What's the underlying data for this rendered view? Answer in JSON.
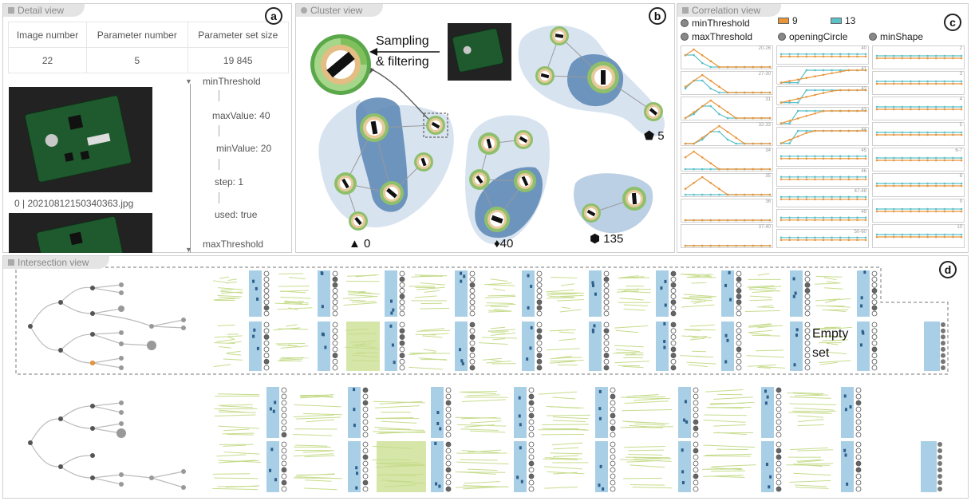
{
  "detail": {
    "title": "Detail view",
    "badge": "a",
    "headers": [
      "Image number",
      "Parameter number",
      "Parameter set size"
    ],
    "values": [
      "22",
      "5",
      "19 845"
    ],
    "image_caption": "0 | 20210812150340363.jpg",
    "tree": {
      "param1": "minThreshold",
      "maxValue": "maxValue: 40",
      "minValue": "minValue: 20",
      "step": "step: 1",
      "used": "used: true",
      "param2": "maxThreshold"
    }
  },
  "cluster": {
    "title": "Cluster view",
    "badge": "b",
    "sampling_line1": "Sampling",
    "sampling_line2": "& filtering",
    "labels": [
      {
        "shape": "▲",
        "value": "0"
      },
      {
        "shape": "♦",
        "value": "40"
      },
      {
        "shape": "⬢",
        "value": "135"
      },
      {
        "shape": "⬟",
        "value": "5"
      }
    ]
  },
  "correlation": {
    "title": "Correlation view",
    "badge": "c",
    "legend": {
      "minThreshold": "minThreshold",
      "maxThreshold": "maxThreshold",
      "openingCircle": "openingCircle",
      "minShape": "minShape",
      "series_a": "9",
      "series_b": "13"
    },
    "colors": {
      "series_a": "#e8953a",
      "series_b": "#5bc0c8"
    },
    "row_labels": {
      "col1": [
        "20-26",
        "27-30",
        "31",
        "32-33",
        "34",
        "35",
        "36",
        "37-40"
      ],
      "col2": [
        "40",
        "41",
        "42",
        "43",
        "44",
        "45",
        "46",
        "47-48",
        "49",
        "50-60"
      ],
      "col3": [
        "2",
        "3",
        "4",
        "5",
        "6-7",
        "8",
        "9",
        "10"
      ]
    }
  },
  "intersection": {
    "title": "Intersection view",
    "badge": "d",
    "empty_line1": "Empty",
    "empty_line2": "set"
  }
}
